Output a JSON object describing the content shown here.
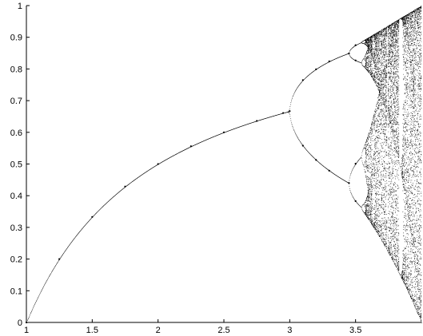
{
  "chart_data": {
    "type": "scatter",
    "title": "",
    "xlabel": "",
    "ylabel": "",
    "xlim": [
      1,
      4
    ],
    "ylim": [
      0,
      1
    ],
    "grid": false,
    "legend": "none",
    "color": "#000000",
    "x_ticks": [
      {
        "value": 1,
        "label": "1"
      },
      {
        "value": 1.5,
        "label": "1.5"
      },
      {
        "value": 2,
        "label": "2"
      },
      {
        "value": 2.5,
        "label": "2.5"
      },
      {
        "value": 3,
        "label": "3"
      },
      {
        "value": 3.5,
        "label": "3.5"
      }
    ],
    "y_ticks": [
      {
        "value": 0,
        "label": "0"
      },
      {
        "value": 0.1,
        "label": "0.1"
      },
      {
        "value": 0.2,
        "label": "0.2"
      },
      {
        "value": 0.3,
        "label": "0.3"
      },
      {
        "value": 0.4,
        "label": "0.4"
      },
      {
        "value": 0.5,
        "label": "0.5"
      },
      {
        "value": 0.6,
        "label": "0.6"
      },
      {
        "value": 0.7,
        "label": "0.7"
      },
      {
        "value": 0.8,
        "label": "0.8"
      },
      {
        "value": 0.9,
        "label": "0.9"
      },
      {
        "value": 1,
        "label": "1"
      }
    ],
    "series": [
      {
        "x": [
          1.0,
          1.25,
          1.5,
          1.75,
          2.0,
          2.25,
          2.5,
          2.75,
          2.95,
          3.0,
          3.1,
          3.1,
          3.2,
          3.2,
          3.3,
          3.3,
          3.45,
          3.45,
          3.5,
          3.5,
          3.5,
          3.5
        ],
        "y": [
          0.0,
          0.2,
          0.333,
          0.429,
          0.5,
          0.556,
          0.6,
          0.636,
          0.661,
          0.667,
          0.765,
          0.558,
          0.799,
          0.513,
          0.824,
          0.479,
          0.849,
          0.44,
          0.875,
          0.827,
          0.501,
          0.383
        ]
      }
    ]
  }
}
